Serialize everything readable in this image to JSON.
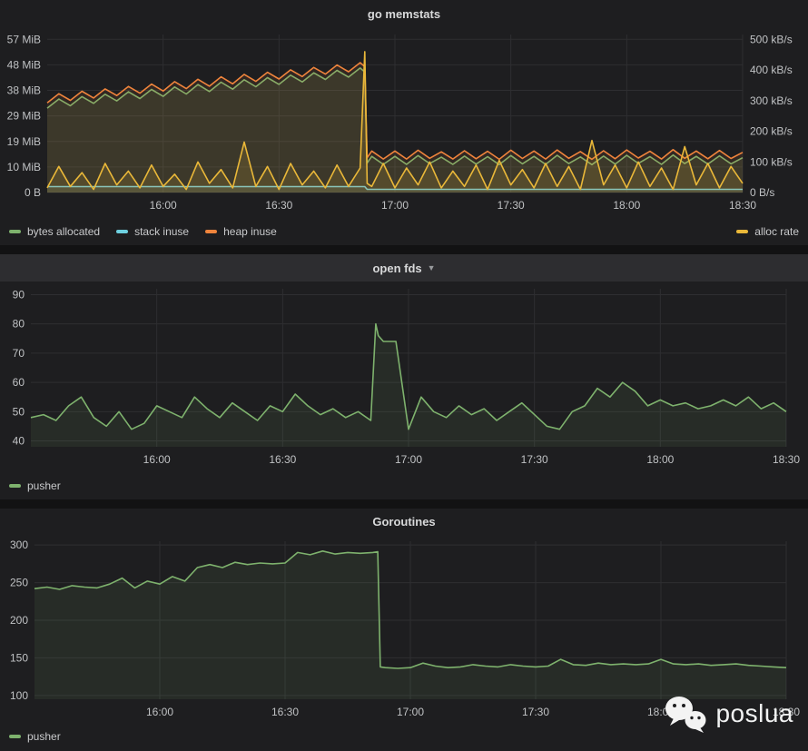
{
  "panels": [
    {
      "title": "go memstats"
    },
    {
      "title": "open fds"
    },
    {
      "title": "Goroutines"
    }
  ],
  "watermark": {
    "text": "poslua"
  },
  "chart_data": [
    {
      "type": "line",
      "title": "go memstats",
      "x_range": [
        15.5,
        18.5
      ],
      "x_ticks": [
        {
          "v": 16.0,
          "label": "16:00"
        },
        {
          "v": 16.5,
          "label": "16:30"
        },
        {
          "v": 17.0,
          "label": "17:00"
        },
        {
          "v": 17.5,
          "label": "17:30"
        },
        {
          "v": 18.0,
          "label": "18:00"
        },
        {
          "v": 18.5,
          "label": "18:30"
        }
      ],
      "y_left": {
        "unit": "bytes",
        "range": [
          0,
          59
        ],
        "ticks": [
          {
            "v": 0,
            "label": "0 B"
          },
          {
            "v": 9.53,
            "label": "10 MiB"
          },
          {
            "v": 19.07,
            "label": "19 MiB"
          },
          {
            "v": 28.6,
            "label": "29 MiB"
          },
          {
            "v": 38.13,
            "label": "38 MiB"
          },
          {
            "v": 47.67,
            "label": "48 MiB"
          },
          {
            "v": 57.2,
            "label": "57 MiB"
          }
        ]
      },
      "y_right": {
        "unit": "kB/s",
        "range": [
          0,
          516
        ],
        "ticks": [
          {
            "v": 0,
            "label": "0 B/s"
          },
          {
            "v": 100,
            "label": "100 kB/s"
          },
          {
            "v": 200,
            "label": "200 kB/s"
          },
          {
            "v": 300,
            "label": "300 kB/s"
          },
          {
            "v": 400,
            "label": "400 kB/s"
          },
          {
            "v": 500,
            "label": "500 kB/s"
          }
        ]
      },
      "x": [
        15.5,
        15.55,
        15.6,
        15.65,
        15.7,
        15.75,
        15.8,
        15.85,
        15.9,
        15.95,
        16.0,
        16.05,
        16.1,
        16.15,
        16.2,
        16.25,
        16.3,
        16.35,
        16.4,
        16.45,
        16.5,
        16.55,
        16.6,
        16.65,
        16.7,
        16.75,
        16.8,
        16.85,
        16.87,
        16.88,
        16.9,
        16.95,
        17.0,
        17.05,
        17.1,
        17.15,
        17.2,
        17.25,
        17.3,
        17.35,
        17.4,
        17.45,
        17.5,
        17.55,
        17.6,
        17.65,
        17.7,
        17.75,
        17.8,
        17.85,
        17.9,
        17.95,
        18.0,
        18.05,
        18.1,
        18.15,
        18.2,
        18.25,
        18.3,
        18.35,
        18.4,
        18.45,
        18.5
      ],
      "series": [
        {
          "name": "bytes allocated",
          "color": "#7EB26D",
          "axis": "left",
          "fill": 0.12,
          "y": [
            31.5,
            34.9,
            32.4,
            35.8,
            33.3,
            36.7,
            34.2,
            37.6,
            35.1,
            38.5,
            35.9,
            39.4,
            36.8,
            40.3,
            37.7,
            41.2,
            38.6,
            42.1,
            39.5,
            42.9,
            40.4,
            43.8,
            41.3,
            44.7,
            42.2,
            45.6,
            43.1,
            46.5,
            45.0,
            11.0,
            13.5,
            10.5,
            13.5,
            10.5,
            13.8,
            10.8,
            13.2,
            10.5,
            13.6,
            10.6,
            13.4,
            10.4,
            13.8,
            10.7,
            13.5,
            10.5,
            13.9,
            10.8,
            13.3,
            10.4,
            13.6,
            10.6,
            13.9,
            10.9,
            13.4,
            10.5,
            14.0,
            10.8,
            13.5,
            10.6,
            13.7,
            10.7,
            13.0
          ]
        },
        {
          "name": "stack inuse",
          "color": "#6ED0E0",
          "axis": "left",
          "fill": 0.1,
          "y": [
            2.2,
            2.2,
            2.2,
            2.2,
            2.2,
            2.2,
            2.2,
            2.2,
            2.2,
            2.2,
            2.2,
            2.2,
            2.2,
            2.2,
            2.2,
            2.2,
            2.2,
            2.2,
            2.2,
            2.2,
            2.2,
            2.2,
            2.2,
            2.2,
            2.2,
            2.2,
            2.2,
            2.2,
            2.2,
            1.2,
            1.2,
            1.2,
            1.2,
            1.2,
            1.2,
            1.2,
            1.2,
            1.2,
            1.2,
            1.2,
            1.2,
            1.2,
            1.2,
            1.2,
            1.2,
            1.2,
            1.2,
            1.2,
            1.2,
            1.2,
            1.2,
            1.2,
            1.2,
            1.2,
            1.2,
            1.2,
            1.2,
            1.2,
            1.2,
            1.2,
            1.2,
            1.2,
            1.2
          ]
        },
        {
          "name": "heap inuse",
          "color": "#EF843C",
          "axis": "left",
          "fill": 0.1,
          "y": [
            33.5,
            36.9,
            34.4,
            37.8,
            35.3,
            38.7,
            36.2,
            39.6,
            37.1,
            40.5,
            37.9,
            41.4,
            38.8,
            42.3,
            39.7,
            43.2,
            40.6,
            44.1,
            41.5,
            44.9,
            42.4,
            45.8,
            43.3,
            46.7,
            44.2,
            47.6,
            45.1,
            48.5,
            47.0,
            13.0,
            15.5,
            12.5,
            15.5,
            12.5,
            15.8,
            12.8,
            15.2,
            12.5,
            15.6,
            12.6,
            15.4,
            12.4,
            15.8,
            12.7,
            15.5,
            12.5,
            15.9,
            12.8,
            15.3,
            12.4,
            15.6,
            12.6,
            15.9,
            12.9,
            15.4,
            12.5,
            16.0,
            12.8,
            15.5,
            12.6,
            15.7,
            12.7,
            15.0
          ]
        },
        {
          "name": "alloc rate",
          "color": "#EAB839",
          "axis": "right",
          "fill": 0.14,
          "legend_side": "right",
          "y": [
            15,
            85,
            20,
            65,
            10,
            95,
            25,
            70,
            15,
            90,
            20,
            60,
            10,
            100,
            30,
            75,
            15,
            165,
            20,
            85,
            10,
            95,
            25,
            70,
            15,
            90,
            20,
            80,
            460,
            30,
            20,
            95,
            15,
            80,
            25,
            100,
            15,
            70,
            20,
            90,
            10,
            105,
            25,
            75,
            15,
            95,
            20,
            85,
            10,
            170,
            25,
            90,
            15,
            100,
            20,
            80,
            10,
            150,
            25,
            95,
            15,
            85,
            30
          ]
        }
      ]
    },
    {
      "type": "line",
      "title": "open fds",
      "x_range": [
        15.5,
        18.5
      ],
      "x_ticks": [
        {
          "v": 16.0,
          "label": "16:00"
        },
        {
          "v": 16.5,
          "label": "16:30"
        },
        {
          "v": 17.0,
          "label": "17:00"
        },
        {
          "v": 17.5,
          "label": "17:30"
        },
        {
          "v": 18.0,
          "label": "18:00"
        },
        {
          "v": 18.5,
          "label": "18:30"
        }
      ],
      "y_left": {
        "unit": "short",
        "range": [
          38,
          92
        ],
        "ticks": [
          {
            "v": 40,
            "label": "40"
          },
          {
            "v": 50,
            "label": "50"
          },
          {
            "v": 60,
            "label": "60"
          },
          {
            "v": 70,
            "label": "70"
          },
          {
            "v": 80,
            "label": "80"
          },
          {
            "v": 90,
            "label": "90"
          }
        ]
      },
      "x": [
        15.5,
        15.55,
        15.6,
        15.65,
        15.7,
        15.75,
        15.8,
        15.85,
        15.9,
        15.95,
        16.0,
        16.05,
        16.1,
        16.15,
        16.2,
        16.25,
        16.3,
        16.35,
        16.4,
        16.45,
        16.5,
        16.55,
        16.6,
        16.65,
        16.7,
        16.75,
        16.8,
        16.85,
        16.87,
        16.88,
        16.9,
        16.95,
        17.0,
        17.05,
        17.1,
        17.15,
        17.2,
        17.25,
        17.3,
        17.35,
        17.4,
        17.45,
        17.5,
        17.55,
        17.6,
        17.65,
        17.7,
        17.75,
        17.8,
        17.85,
        17.9,
        17.95,
        18.0,
        18.05,
        18.1,
        18.15,
        18.2,
        18.25,
        18.3,
        18.35,
        18.4,
        18.45,
        18.5
      ],
      "series": [
        {
          "name": "pusher",
          "color": "#7EB26D",
          "axis": "left",
          "fill": 0.1,
          "y": [
            48,
            49,
            47,
            52,
            55,
            48,
            45,
            50,
            44,
            46,
            52,
            50,
            48,
            55,
            51,
            48,
            53,
            50,
            47,
            52,
            50,
            56,
            52,
            49,
            51,
            48,
            50,
            47,
            80,
            76,
            74,
            74,
            44,
            55,
            50,
            48,
            52,
            49,
            51,
            47,
            50,
            53,
            49,
            45,
            44,
            50,
            52,
            58,
            55,
            60,
            57,
            52,
            54,
            52,
            53,
            51,
            52,
            54,
            52,
            55,
            51,
            53,
            50
          ]
        }
      ]
    },
    {
      "type": "line",
      "title": "Goroutines",
      "x_range": [
        15.5,
        18.5
      ],
      "x_ticks": [
        {
          "v": 16.0,
          "label": "16:00"
        },
        {
          "v": 16.5,
          "label": "16:30"
        },
        {
          "v": 17.0,
          "label": "17:00"
        },
        {
          "v": 17.5,
          "label": "17:30"
        },
        {
          "v": 18.0,
          "label": "18:00"
        },
        {
          "v": 18.5,
          "label": "18:30"
        }
      ],
      "y_left": {
        "unit": "short",
        "range": [
          95,
          305
        ],
        "ticks": [
          {
            "v": 100,
            "label": "100"
          },
          {
            "v": 150,
            "label": "150"
          },
          {
            "v": 200,
            "label": "200"
          },
          {
            "v": 250,
            "label": "250"
          },
          {
            "v": 300,
            "label": "300"
          }
        ]
      },
      "x": [
        15.5,
        15.55,
        15.6,
        15.65,
        15.7,
        15.75,
        15.8,
        15.85,
        15.9,
        15.95,
        16.0,
        16.05,
        16.1,
        16.15,
        16.2,
        16.25,
        16.3,
        16.35,
        16.4,
        16.45,
        16.5,
        16.55,
        16.6,
        16.65,
        16.7,
        16.75,
        16.8,
        16.85,
        16.87,
        16.88,
        16.9,
        16.95,
        17.0,
        17.05,
        17.1,
        17.15,
        17.2,
        17.25,
        17.3,
        17.35,
        17.4,
        17.45,
        17.5,
        17.55,
        17.6,
        17.65,
        17.7,
        17.75,
        17.8,
        17.85,
        17.9,
        17.95,
        18.0,
        18.05,
        18.1,
        18.15,
        18.2,
        18.25,
        18.3,
        18.35,
        18.4,
        18.45,
        18.5
      ],
      "series": [
        {
          "name": "pusher",
          "color": "#7EB26D",
          "axis": "left",
          "fill": 0.1,
          "y": [
            242,
            244,
            241,
            246,
            244,
            243,
            248,
            256,
            243,
            252,
            248,
            258,
            252,
            270,
            274,
            270,
            277,
            274,
            276,
            275,
            276,
            290,
            287,
            292,
            288,
            290,
            289,
            290,
            291,
            138,
            137,
            136,
            137,
            143,
            139,
            137,
            138,
            141,
            139,
            138,
            141,
            139,
            138,
            139,
            148,
            141,
            140,
            143,
            141,
            142,
            141,
            142,
            148,
            142,
            141,
            142,
            140,
            141,
            142,
            140,
            139,
            138,
            137
          ]
        }
      ]
    }
  ]
}
